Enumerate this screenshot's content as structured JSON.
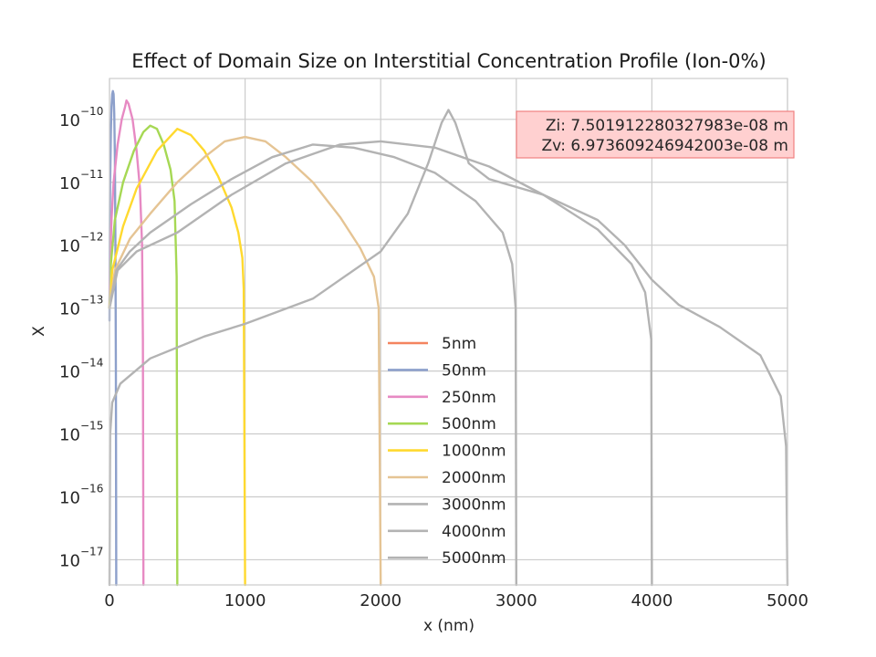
{
  "chart_data": {
    "type": "line",
    "title": "Effect of Domain Size on Interstitial Concentration Profile (Ion-0%)",
    "xlabel": "x (nm)",
    "ylabel": "X",
    "xlim": [
      0,
      5000
    ],
    "ylim_log10": [
      -17.4,
      -9.35
    ],
    "yscale": "log",
    "grid": true,
    "legend_placement": "lower center",
    "x_ticks": [
      0,
      1000,
      2000,
      3000,
      4000,
      5000
    ],
    "x_tick_labels": [
      "0",
      "1000",
      "2000",
      "3000",
      "4000",
      "5000"
    ],
    "y_ticks_exponent": [
      -10,
      -11,
      -12,
      -13,
      -14,
      -15,
      -16,
      -17
    ],
    "y_tick_base": "10",
    "y_tick_exponent_labels": [
      "−10",
      "−11",
      "−12",
      "−13",
      "−14",
      "−15",
      "−16",
      "−17"
    ],
    "annotation": {
      "lines": [
        "Zi: 7.501912280327983e-08 m",
        "Zv: 6.973609246942003e-08 m"
      ],
      "color": "#f4a3a3"
    },
    "series": [
      {
        "name": "5nm",
        "color": "#f4845f",
        "points": []
      },
      {
        "name": "50nm",
        "color": "#8da0cb",
        "points": [
          [
            0,
            -13.2
          ],
          [
            2,
            -12.0
          ],
          [
            5,
            -11.0
          ],
          [
            10,
            -10.2
          ],
          [
            15,
            -9.8
          ],
          [
            20,
            -9.6
          ],
          [
            25,
            -9.55
          ],
          [
            30,
            -9.6
          ],
          [
            35,
            -9.9
          ],
          [
            40,
            -10.6
          ],
          [
            44,
            -12.0
          ],
          [
            47,
            -14.0
          ],
          [
            49.5,
            -17.4
          ]
        ]
      },
      {
        "name": "250nm",
        "color": "#e78ac3",
        "points": [
          [
            0,
            -13.0
          ],
          [
            5,
            -12.2
          ],
          [
            15,
            -11.6
          ],
          [
            30,
            -11.0
          ],
          [
            60,
            -10.4
          ],
          [
            90,
            -10.0
          ],
          [
            115,
            -9.8
          ],
          [
            125,
            -9.7
          ],
          [
            140,
            -9.75
          ],
          [
            170,
            -10.0
          ],
          [
            200,
            -10.5
          ],
          [
            225,
            -11.1
          ],
          [
            240,
            -12.0
          ],
          [
            246,
            -13.5
          ],
          [
            250,
            -17.4
          ]
        ]
      },
      {
        "name": "500nm",
        "color": "#a6d854",
        "points": [
          [
            0,
            -13.0
          ],
          [
            10,
            -12.3
          ],
          [
            40,
            -11.6
          ],
          [
            100,
            -11.0
          ],
          [
            180,
            -10.5
          ],
          [
            250,
            -10.2
          ],
          [
            300,
            -10.1
          ],
          [
            350,
            -10.15
          ],
          [
            400,
            -10.4
          ],
          [
            450,
            -10.8
          ],
          [
            480,
            -11.3
          ],
          [
            495,
            -12.5
          ],
          [
            500,
            -17.4
          ]
        ]
      },
      {
        "name": "1000nm",
        "color": "#ffd92f",
        "points": [
          [
            0,
            -13.0
          ],
          [
            20,
            -12.4
          ],
          [
            100,
            -11.7
          ],
          [
            200,
            -11.1
          ],
          [
            350,
            -10.5
          ],
          [
            500,
            -10.15
          ],
          [
            600,
            -10.25
          ],
          [
            700,
            -10.5
          ],
          [
            800,
            -10.9
          ],
          [
            900,
            -11.4
          ],
          [
            950,
            -11.8
          ],
          [
            980,
            -12.2
          ],
          [
            990,
            -12.7
          ],
          [
            1000,
            -17.4
          ]
        ]
      },
      {
        "name": "2000nm",
        "color": "#e5c494",
        "points": [
          [
            0,
            -13.0
          ],
          [
            40,
            -12.4
          ],
          [
            150,
            -11.9
          ],
          [
            300,
            -11.5
          ],
          [
            500,
            -11.0
          ],
          [
            700,
            -10.6
          ],
          [
            850,
            -10.35
          ],
          [
            1000,
            -10.28
          ],
          [
            1150,
            -10.35
          ],
          [
            1300,
            -10.6
          ],
          [
            1500,
            -11.0
          ],
          [
            1700,
            -11.55
          ],
          [
            1850,
            -12.05
          ],
          [
            1950,
            -12.5
          ],
          [
            1985,
            -13.0
          ],
          [
            2000,
            -17.4
          ]
        ]
      },
      {
        "name": "3000nm",
        "color": "#b3b3b3",
        "points": [
          [
            0,
            -13.0
          ],
          [
            50,
            -12.4
          ],
          [
            150,
            -12.1
          ],
          [
            300,
            -11.8
          ],
          [
            600,
            -11.35
          ],
          [
            900,
            -10.95
          ],
          [
            1200,
            -10.6
          ],
          [
            1500,
            -10.4
          ],
          [
            1800,
            -10.45
          ],
          [
            2100,
            -10.6
          ],
          [
            2400,
            -10.85
          ],
          [
            2700,
            -11.3
          ],
          [
            2900,
            -11.8
          ],
          [
            2970,
            -12.3
          ],
          [
            2995,
            -13.0
          ],
          [
            3000,
            -17.4
          ]
        ]
      },
      {
        "name": "4000nm",
        "color": "#b3b3b3",
        "points": [
          [
            0,
            -13.0
          ],
          [
            60,
            -12.4
          ],
          [
            200,
            -12.1
          ],
          [
            500,
            -11.8
          ],
          [
            900,
            -11.2
          ],
          [
            1300,
            -10.7
          ],
          [
            1700,
            -10.4
          ],
          [
            2000,
            -10.35
          ],
          [
            2400,
            -10.45
          ],
          [
            2800,
            -10.75
          ],
          [
            3200,
            -11.2
          ],
          [
            3600,
            -11.75
          ],
          [
            3850,
            -12.3
          ],
          [
            3950,
            -12.75
          ],
          [
            3995,
            -13.5
          ],
          [
            4000,
            -17.4
          ]
        ]
      },
      {
        "name": "5000nm",
        "color": "#b3b3b3",
        "points": [
          [
            0,
            -17.4
          ],
          [
            5,
            -15.0
          ],
          [
            20,
            -14.5
          ],
          [
            80,
            -14.2
          ],
          [
            300,
            -13.8
          ],
          [
            700,
            -13.45
          ],
          [
            1000,
            -13.25
          ],
          [
            1500,
            -12.85
          ],
          [
            2000,
            -12.1
          ],
          [
            2200,
            -11.5
          ],
          [
            2350,
            -10.7
          ],
          [
            2450,
            -10.05
          ],
          [
            2500,
            -9.85
          ],
          [
            2550,
            -10.05
          ],
          [
            2650,
            -10.7
          ],
          [
            2800,
            -10.95
          ],
          [
            3200,
            -11.2
          ],
          [
            3600,
            -11.6
          ],
          [
            3800,
            -12.0
          ],
          [
            4000,
            -12.55
          ],
          [
            4200,
            -12.95
          ],
          [
            4500,
            -13.3
          ],
          [
            4800,
            -13.75
          ],
          [
            4950,
            -14.4
          ],
          [
            4990,
            -15.2
          ],
          [
            5000,
            -17.4
          ]
        ]
      }
    ]
  }
}
